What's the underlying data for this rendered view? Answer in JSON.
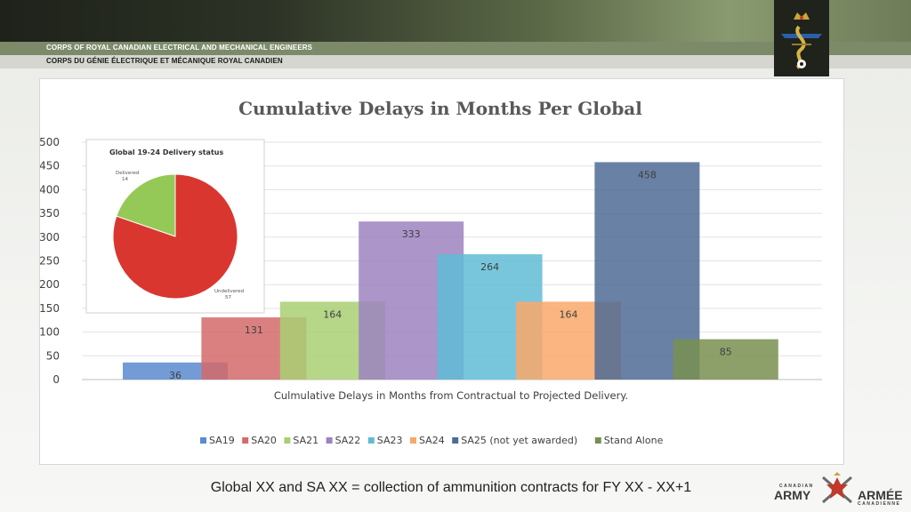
{
  "header": {
    "corps_en": "CORPS OF ROYAL CANADIAN ELECTRICAL AND MECHANICAL ENGINEERS",
    "corps_fr": "CORPS DU GÉNIE ÉLECTRIQUE ET MÉCANIQUE ROYAL CANADIEN"
  },
  "footer": {
    "note": "Global XX and SA XX = collection of ammunition contracts for FY XX - XX+1",
    "army_top": "CANADIAN",
    "army_en": "ARMY",
    "army_fr": "ARMÉE",
    "army_bottom": "CANADIENNE"
  },
  "colors": {
    "accent": "#7c8a6a",
    "dark": "#1e221a"
  },
  "chart_data": [
    {
      "type": "bar",
      "title": "Cumulative Delays in Months Per Global",
      "xlabel": "Culmulative  Delays  in Months from Contractual  to Projected Delivery.",
      "ylabel": "",
      "ylim": [
        0,
        500
      ],
      "yticks": [
        0,
        50,
        100,
        150,
        200,
        250,
        300,
        350,
        400,
        450,
        500
      ],
      "grid": true,
      "legend": "bottom",
      "series": [
        {
          "name": "SA19",
          "value": 36,
          "color": "#5b8bd0"
        },
        {
          "name": "SA20",
          "value": 131,
          "color": "#d46a6a"
        },
        {
          "name": "SA21",
          "value": 164,
          "color": "#a9cf73"
        },
        {
          "name": "SA22",
          "value": 333,
          "color": "#9c83c0"
        },
        {
          "name": "SA23",
          "value": 264,
          "color": "#5fbcd6"
        },
        {
          "name": "SA24",
          "value": 164,
          "color": "#f9a86a"
        },
        {
          "name": "SA25 (not yet awarded)",
          "value": 458,
          "color": "#4f6b95"
        },
        {
          "name": "Stand Alone",
          "value": 85,
          "color": "#798f50"
        }
      ]
    },
    {
      "type": "pie",
      "title": "Global 19-24 Delivery status",
      "slices": [
        {
          "name": "Delivered",
          "value": 14,
          "color": "#94c957"
        },
        {
          "name": "Undelivered",
          "value": 57,
          "color": "#d9362f"
        }
      ]
    }
  ]
}
